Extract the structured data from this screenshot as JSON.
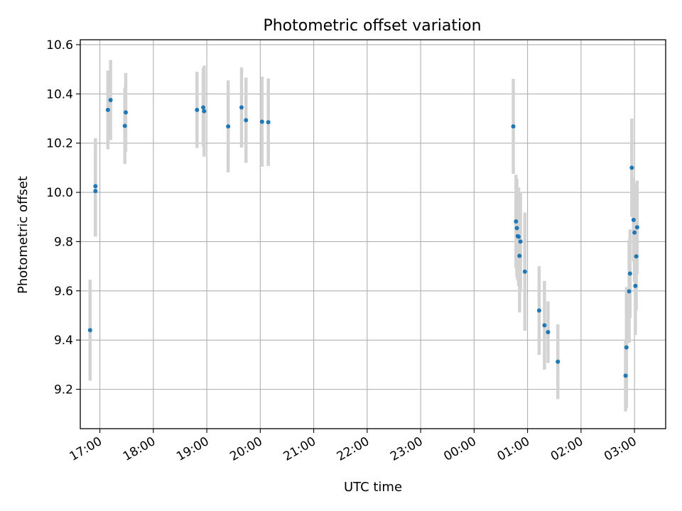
{
  "chart_data": {
    "type": "scatter",
    "title": "Photometric offset variation",
    "xlabel": "UTC time",
    "ylabel": "Photometric offset",
    "x_axis": {
      "kind": "time",
      "start": "16:38",
      "end": "03:35",
      "ticks": [
        "17:00",
        "18:00",
        "19:00",
        "20:00",
        "21:00",
        "22:00",
        "23:00",
        "00:00",
        "01:00",
        "02:00",
        "03:00"
      ]
    },
    "y_axis": {
      "range": [
        9.04,
        10.62
      ],
      "ticks": [
        9.2,
        9.4,
        9.6,
        9.8,
        10.0,
        10.2,
        10.4,
        10.6
      ],
      "tick_labels": [
        "9.2",
        "9.4",
        "9.6",
        "9.8",
        "10.0",
        "10.2",
        "10.4",
        "10.6"
      ]
    },
    "grid": true,
    "marker_color": "#1f77b4",
    "errorbar_color": "#d3d3d3",
    "points": [
      {
        "x": "16:49",
        "y": 9.44,
        "err": 0.205
      },
      {
        "x": "16:55",
        "y": 10.025,
        "err": 0.195
      },
      {
        "x": "16:55",
        "y": 10.005,
        "err": 0.185
      },
      {
        "x": "17:09",
        "y": 10.335,
        "err": 0.16
      },
      {
        "x": "17:12",
        "y": 10.375,
        "err": 0.163
      },
      {
        "x": "17:28",
        "y": 10.27,
        "err": 0.155
      },
      {
        "x": "17:29",
        "y": 10.325,
        "err": 0.16
      },
      {
        "x": "18:49",
        "y": 10.335,
        "err": 0.155
      },
      {
        "x": "18:56",
        "y": 10.345,
        "err": 0.16
      },
      {
        "x": "18:57",
        "y": 10.33,
        "err": 0.185
      },
      {
        "x": "19:24",
        "y": 10.268,
        "err": 0.187
      },
      {
        "x": "19:39",
        "y": 10.345,
        "err": 0.163
      },
      {
        "x": "19:44",
        "y": 10.293,
        "err": 0.173
      },
      {
        "x": "20:02",
        "y": 10.287,
        "err": 0.183
      },
      {
        "x": "20:09",
        "y": 10.285,
        "err": 0.178
      },
      {
        "x": "00:44",
        "y": 10.268,
        "err": 0.193
      },
      {
        "x": "00:47",
        "y": 9.882,
        "err": 0.19
      },
      {
        "x": "00:48",
        "y": 9.855,
        "err": 0.2
      },
      {
        "x": "00:49",
        "y": 9.822,
        "err": 0.18
      },
      {
        "x": "00:50",
        "y": 9.82,
        "err": 0.2
      },
      {
        "x": "00:51",
        "y": 9.742,
        "err": 0.23
      },
      {
        "x": "00:52",
        "y": 9.8,
        "err": 0.2
      },
      {
        "x": "00:57",
        "y": 9.678,
        "err": 0.24
      },
      {
        "x": "01:13",
        "y": 9.52,
        "err": 0.18
      },
      {
        "x": "01:19",
        "y": 9.46,
        "err": 0.18
      },
      {
        "x": "01:23",
        "y": 9.432,
        "err": 0.125
      },
      {
        "x": "01:34",
        "y": 9.312,
        "err": 0.152
      },
      {
        "x": "02:50",
        "y": 9.255,
        "err": 0.145
      },
      {
        "x": "02:51",
        "y": 9.37,
        "err": 0.245
      },
      {
        "x": "02:54",
        "y": 9.598,
        "err": 0.21
      },
      {
        "x": "02:55",
        "y": 9.67,
        "err": 0.18
      },
      {
        "x": "02:57",
        "y": 10.1,
        "err": 0.2
      },
      {
        "x": "02:59",
        "y": 9.888,
        "err": 0.17
      },
      {
        "x": "03:00",
        "y": 9.837,
        "err": 0.2
      },
      {
        "x": "03:01",
        "y": 9.62,
        "err": 0.2
      },
      {
        "x": "03:02",
        "y": 9.74,
        "err": 0.22
      },
      {
        "x": "03:03",
        "y": 9.858,
        "err": 0.19
      }
    ]
  }
}
